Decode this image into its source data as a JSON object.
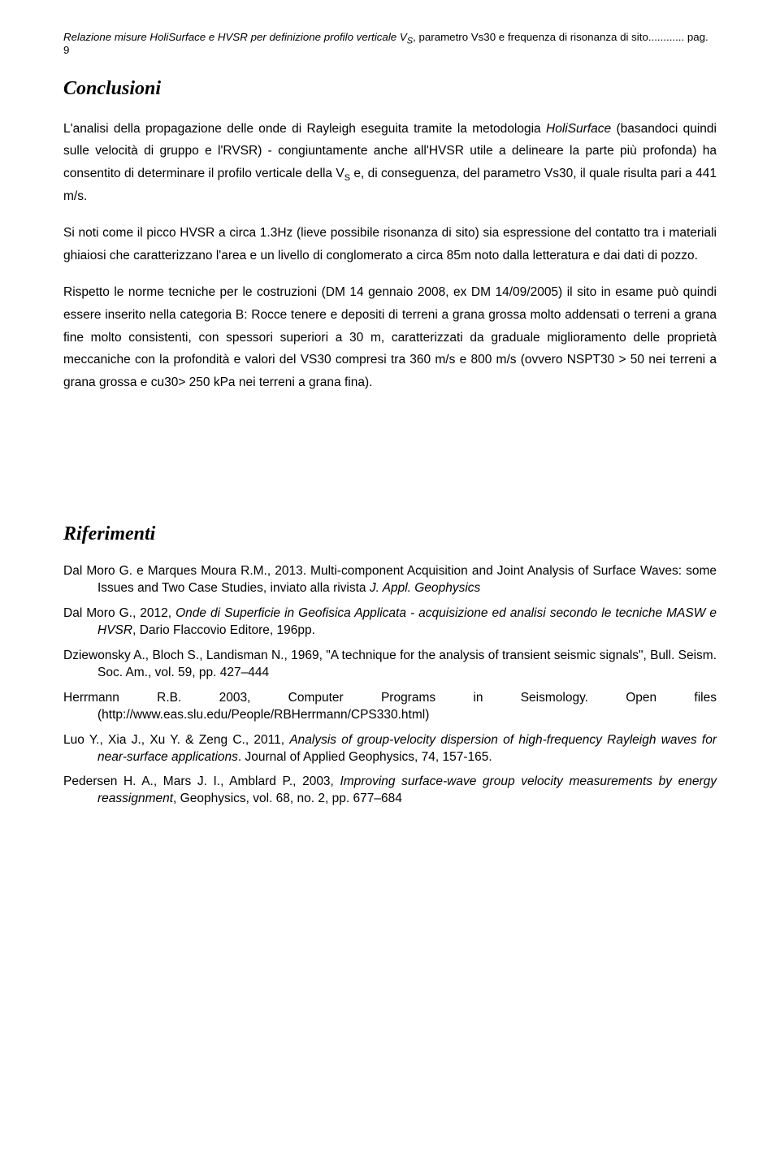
{
  "header": {
    "text_italic": "Relazione misure HoliSurface e HVSR per definizione profilo verticale V",
    "sub": "S",
    "text_tail": ", parametro Vs30 e frequenza di risonanza di sito............ pag. 9"
  },
  "conclusioni": {
    "title": "Conclusioni",
    "p1_a": "L'analisi della propagazione delle onde di Rayleigh eseguita tramite la metodologia ",
    "p1_i": "HoliSurface",
    "p1_b": " (basandoci quindi sulle velocità di gruppo e l'RVSR) - congiuntamente anche all'HVSR utile a delineare la parte più profonda) ha consentito di determinare il profilo verticale della V",
    "p1_sub": "S",
    "p1_c": " e, di conseguenza, del parametro Vs30, il quale risulta pari a 441 m/s.",
    "p2": "Si noti come il picco HVSR a circa 1.3Hz (lieve possibile risonanza di sito) sia espressione del contatto tra i materiali ghiaiosi che caratterizzano l'area e un livello di conglomerato a circa 85m noto dalla letteratura e dai dati di pozzo.",
    "p3": "Rispetto le norme tecniche per le costruzioni (DM 14 gennaio 2008, ex DM 14/09/2005) il sito in esame può quindi essere inserito nella categoria B: Rocce tenere e depositi di terreni a grana grossa molto addensati o terreni a grana fine molto consistenti, con spessori superiori a 30 m, caratterizzati da graduale miglioramento delle proprietà meccaniche con la profondità e valori del VS30 compresi tra 360 m/s e 800 m/s (ovvero NSPT30 > 50 nei terreni a grana grossa e cu30> 250 kPa nei terreni a grana fina)."
  },
  "riferimenti": {
    "title": "Riferimenti",
    "r1_a": "Dal Moro G. e Marques Moura R.M., 2013. Multi-component Acquisition and Joint Analysis of Surface Waves: some Issues and Two Case Studies, inviato alla rivista ",
    "r1_i": "J. Appl. Geophysics",
    "r2_a": "Dal Moro G., 2012, ",
    "r2_i": "Onde di Superficie in Geofisica Applicata - acquisizione ed analisi secondo le tecniche MASW e HVSR",
    "r2_b": ", Dario Flaccovio Editore, 196pp.",
    "r3": "Dziewonsky A., Bloch S., Landisman N., 1969, \"A technique for the analysis of transient seismic signals\", Bull. Seism. Soc. Am., vol. 59, pp. 427–444",
    "r4_line1": "Herrmann R.B. 2003, Computer Programs in Seismology. Open files",
    "r4_line2": "(http://www.eas.slu.edu/People/RBHerrmann/CPS330.html)",
    "r5_a": "Luo Y., Xia J., Xu Y. & Zeng C., 2011, ",
    "r5_i": "Analysis of group-velocity dispersion of high-frequency Rayleigh waves for near-surface applications",
    "r5_b": ". Journal of Applied Geophysics, 74, 157-165.",
    "r6_a": "Pedersen H. A., Mars J. I., Amblard P., 2003, ",
    "r6_i": "Improving surface-wave group velocity measurements by energy reassignment",
    "r6_b": ", Geophysics, vol. 68, no. 2, pp. 677–684"
  }
}
